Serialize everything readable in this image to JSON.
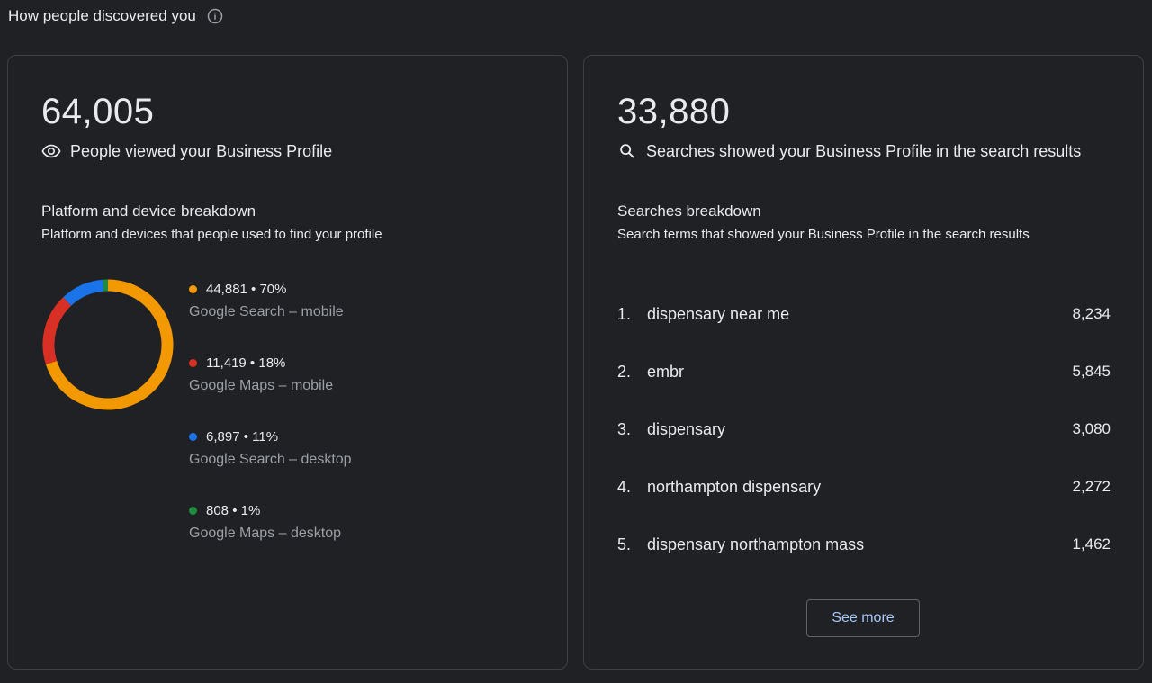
{
  "header": {
    "title": "How people discovered you",
    "info_icon": "info-icon"
  },
  "views_card": {
    "total": "64,005",
    "label": "People viewed your Business Profile",
    "label_icon": "eye-icon",
    "section_title": "Platform and device breakdown",
    "section_subtitle": "Platform and devices that people used to find your profile",
    "breakdown": [
      {
        "stat": "44,881 • 70%",
        "label": "Google Search – mobile",
        "value": 44881,
        "color": "#f29900"
      },
      {
        "stat": "11,419 • 18%",
        "label": "Google Maps – mobile",
        "value": 11419,
        "color": "#d93025"
      },
      {
        "stat": "6,897 • 11%",
        "label": "Google Search – desktop",
        "value": 6897,
        "color": "#1a73e8"
      },
      {
        "stat": "808 • 1%",
        "label": "Google Maps – desktop",
        "value": 808,
        "color": "#1e8e3e"
      }
    ]
  },
  "searches_card": {
    "total": "33,880",
    "label": "Searches showed your Business Profile in the search results",
    "label_icon": "search-icon",
    "section_title": "Searches breakdown",
    "section_subtitle": "Search terms that showed your Business Profile in the search results",
    "terms": [
      {
        "rank": "1.",
        "term": "dispensary near me",
        "count": "8,234"
      },
      {
        "rank": "2.",
        "term": "embr",
        "count": "5,845"
      },
      {
        "rank": "3.",
        "term": "dispensary",
        "count": "3,080"
      },
      {
        "rank": "4.",
        "term": "northampton dispensary",
        "count": "2,272"
      },
      {
        "rank": "5.",
        "term": "dispensary northampton mass",
        "count": "1,462"
      }
    ],
    "see_more_label": "See more"
  },
  "colors": {
    "background": "#202124",
    "card_border": "#3c4043",
    "text_primary": "#e8eaed",
    "text_secondary": "#9aa0a6",
    "accent": "#a8c7fa"
  }
}
